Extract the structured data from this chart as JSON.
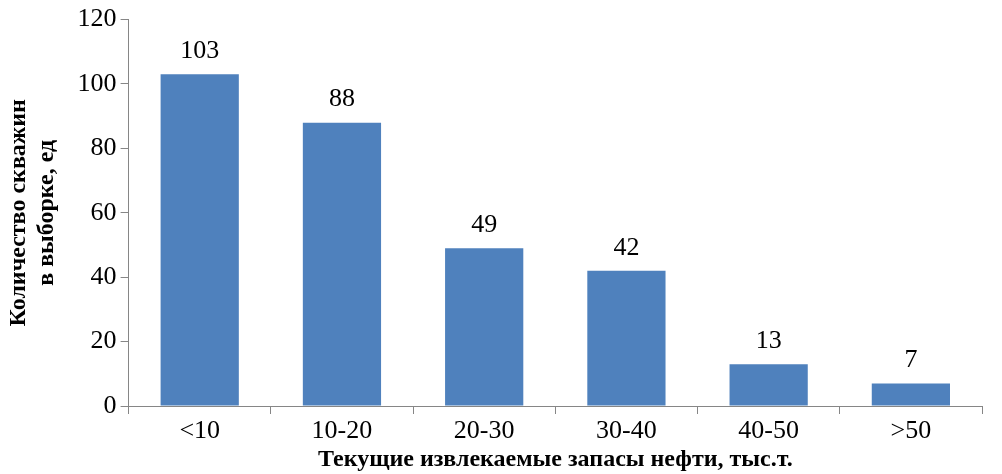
{
  "chart_data": {
    "type": "bar",
    "categories": [
      "<10",
      "10-20",
      "20-30",
      "30-40",
      "40-50",
      ">50"
    ],
    "values": [
      103,
      88,
      49,
      42,
      13,
      7
    ],
    "color": "#4f81bd",
    "ylim": [
      0,
      120
    ],
    "yticks": [
      0,
      20,
      40,
      60,
      80,
      100,
      120
    ],
    "xlabel": "Текущие извлекаемые запасы нефти, тыс.т.",
    "ylabel": "Количество скважин в выборке, ед",
    "data_labels": true,
    "grid": false,
    "legend": false
  }
}
